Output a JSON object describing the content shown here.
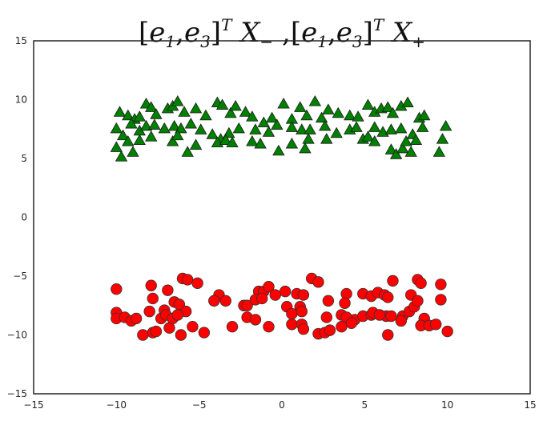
{
  "chart_data": {
    "type": "scatter",
    "title": {
      "parts": [
        {
          "t": "[",
          "upright": true
        },
        {
          "t": "e"
        },
        {
          "t": "1",
          "sub": true
        },
        {
          "t": ",",
          "upright": true
        },
        {
          "t": "e"
        },
        {
          "t": "3",
          "sub": true
        },
        {
          "t": "]",
          "upright": true
        },
        {
          "t": "T",
          "sup": true
        },
        {
          "t": " X"
        },
        {
          "t": "−",
          "sub": true,
          "upright": true
        },
        {
          "t": " ,",
          "upright": true
        },
        {
          "t": "[",
          "upright": true
        },
        {
          "t": "e"
        },
        {
          "t": "1",
          "sub": true
        },
        {
          "t": ",",
          "upright": true
        },
        {
          "t": "e"
        },
        {
          "t": "3",
          "sub": true
        },
        {
          "t": "]",
          "upright": true
        },
        {
          "t": "T",
          "sup": true
        },
        {
          "t": " X"
        },
        {
          "t": "+",
          "sub": true,
          "upright": true
        }
      ]
    },
    "xlabel": "",
    "ylabel": "",
    "xlim": [
      -15,
      15
    ],
    "ylim": [
      -15,
      15
    ],
    "xticks": [
      -15,
      -10,
      -5,
      0,
      5,
      10,
      15
    ],
    "yticks": [
      -15,
      -10,
      -5,
      0,
      5,
      10,
      15
    ],
    "xtick_labels": [
      "−15",
      "−10",
      "−5",
      "0",
      "5",
      "10",
      "15"
    ],
    "ytick_labels": [
      "−15",
      "−10",
      "−5",
      "0",
      "5",
      "10",
      "15"
    ],
    "grid": false,
    "series": [
      {
        "marker": "triangle",
        "color": "#008000",
        "points": [
          [
            -9.8,
            8.9
          ],
          [
            -9.3,
            8.6
          ],
          [
            -8.9,
            8.3
          ],
          [
            -8.6,
            8.5
          ],
          [
            -8.2,
            9.6
          ],
          [
            -7.9,
            9.3
          ],
          [
            -7.6,
            8.7
          ],
          [
            -6.9,
            9.2
          ],
          [
            -6.6,
            9.4
          ],
          [
            -6.3,
            9.8
          ],
          [
            -5.9,
            8.9
          ],
          [
            -5.2,
            9.2
          ],
          [
            -4.6,
            8.6
          ],
          [
            -3.9,
            9.7
          ],
          [
            -3.6,
            9.5
          ],
          [
            -3.1,
            8.8
          ],
          [
            -2.8,
            9.4
          ],
          [
            -2.2,
            8.9
          ],
          [
            -1.8,
            8.5
          ],
          [
            -1.1,
            8.0
          ],
          [
            -0.6,
            8.4
          ],
          [
            0.1,
            9.6
          ],
          [
            0.6,
            8.3
          ],
          [
            1.1,
            9.3
          ],
          [
            1.5,
            8.6
          ],
          [
            2.0,
            9.8
          ],
          [
            2.4,
            8.4
          ],
          [
            2.8,
            9.1
          ],
          [
            3.4,
            8.8
          ],
          [
            4.1,
            8.6
          ],
          [
            4.6,
            8.5
          ],
          [
            5.2,
            9.5
          ],
          [
            5.6,
            8.9
          ],
          [
            6.0,
            9.2
          ],
          [
            6.4,
            9.3
          ],
          [
            6.7,
            8.8
          ],
          [
            7.2,
            9.4
          ],
          [
            7.6,
            9.7
          ],
          [
            8.3,
            8.4
          ],
          [
            8.6,
            8.6
          ],
          [
            -10.0,
            7.5
          ],
          [
            -9.6,
            6.9
          ],
          [
            -9.1,
            7.9
          ],
          [
            -8.6,
            7.3
          ],
          [
            -8.2,
            7.7
          ],
          [
            -7.7,
            7.8
          ],
          [
            -7.1,
            7.5
          ],
          [
            -6.5,
            7.7
          ],
          [
            -6.1,
            7.5
          ],
          [
            -5.5,
            7.9
          ],
          [
            -4.9,
            7.4
          ],
          [
            -4.2,
            7.0
          ],
          [
            -3.7,
            6.6
          ],
          [
            -3.2,
            7.1
          ],
          [
            -2.6,
            7.5
          ],
          [
            -1.6,
            7.4
          ],
          [
            -0.8,
            7.2
          ],
          [
            -0.3,
            7.8
          ],
          [
            0.6,
            7.6
          ],
          [
            1.2,
            7.4
          ],
          [
            1.7,
            7.4
          ],
          [
            2.6,
            7.7
          ],
          [
            3.3,
            7.1
          ],
          [
            4.1,
            7.4
          ],
          [
            4.5,
            7.6
          ],
          [
            5.6,
            7.6
          ],
          [
            6.1,
            7.2
          ],
          [
            6.6,
            7.4
          ],
          [
            7.2,
            7.5
          ],
          [
            7.9,
            7.0
          ],
          [
            8.5,
            7.6
          ],
          [
            9.9,
            7.7
          ],
          [
            -10.0,
            5.9
          ],
          [
            -9.7,
            5.1
          ],
          [
            -9.3,
            6.4
          ],
          [
            -9.0,
            5.5
          ],
          [
            -8.6,
            6.5
          ],
          [
            -7.9,
            6.8
          ],
          [
            -6.6,
            6.4
          ],
          [
            -6.3,
            6.9
          ],
          [
            -5.7,
            5.5
          ],
          [
            -5.2,
            6.1
          ],
          [
            -3.9,
            6.3
          ],
          [
            -3.4,
            6.5
          ],
          [
            -3.0,
            6.3
          ],
          [
            -1.8,
            6.4
          ],
          [
            -1.3,
            6.2
          ],
          [
            -0.2,
            5.6
          ],
          [
            0.6,
            6.2
          ],
          [
            1.4,
            5.8
          ],
          [
            1.6,
            6.6
          ],
          [
            2.7,
            6.6
          ],
          [
            4.9,
            6.6
          ],
          [
            5.2,
            6.8
          ],
          [
            5.6,
            6.4
          ],
          [
            6.6,
            5.7
          ],
          [
            6.9,
            5.3
          ],
          [
            7.3,
            5.8
          ],
          [
            7.5,
            6.4
          ],
          [
            7.8,
            5.5
          ],
          [
            8.1,
            6.5
          ],
          [
            9.5,
            5.5
          ],
          [
            9.7,
            6.6
          ]
        ]
      },
      {
        "marker": "circle",
        "color": "#ff0000",
        "points": [
          [
            -10.0,
            -6.1
          ],
          [
            -7.9,
            -5.8
          ],
          [
            -6.9,
            -6.2
          ],
          [
            -6.0,
            -5.2
          ],
          [
            -5.7,
            -5.3
          ],
          [
            -5.1,
            -5.6
          ],
          [
            -3.8,
            -6.6
          ],
          [
            -1.4,
            -6.3
          ],
          [
            -1.1,
            -6.3
          ],
          [
            -0.8,
            -5.9
          ],
          [
            0.2,
            -6.3
          ],
          [
            0.9,
            -6.5
          ],
          [
            1.8,
            -5.2
          ],
          [
            2.2,
            -5.5
          ],
          [
            3.9,
            -6.5
          ],
          [
            4.9,
            -6.5
          ],
          [
            5.4,
            -6.7
          ],
          [
            5.8,
            -6.4
          ],
          [
            6.2,
            -6.6
          ],
          [
            6.4,
            -6.8
          ],
          [
            6.7,
            -5.4
          ],
          [
            7.8,
            -6.6
          ],
          [
            8.2,
            -5.3
          ],
          [
            8.4,
            -5.6
          ],
          [
            9.6,
            -5.7
          ],
          [
            -7.8,
            -6.9
          ],
          [
            -7.1,
            -7.9
          ],
          [
            -6.5,
            -7.2
          ],
          [
            -6.2,
            -7.4
          ],
          [
            -5.8,
            -8.0
          ],
          [
            -4.1,
            -7.1
          ],
          [
            -3.4,
            -7.1
          ],
          [
            -2.3,
            -7.5
          ],
          [
            -2.1,
            -7.5
          ],
          [
            -1.6,
            -7.0
          ],
          [
            -1.2,
            -6.9
          ],
          [
            -0.4,
            -6.6
          ],
          [
            0.3,
            -7.6
          ],
          [
            1.1,
            -7.6
          ],
          [
            1.3,
            -6.6
          ],
          [
            2.8,
            -7.1
          ],
          [
            3.6,
            -8.3
          ],
          [
            3.8,
            -7.3
          ],
          [
            4.4,
            -8.7
          ],
          [
            4.9,
            -8.4
          ],
          [
            5.4,
            -8.3
          ],
          [
            6.3,
            -8.4
          ],
          [
            6.6,
            -8.4
          ],
          [
            7.3,
            -8.4
          ],
          [
            7.7,
            -8.0
          ],
          [
            8.0,
            -7.6
          ],
          [
            8.2,
            -7.1
          ],
          [
            8.6,
            -8.6
          ],
          [
            9.6,
            -7.0
          ],
          [
            -10.0,
            -8.1
          ],
          [
            -10.0,
            -8.6
          ],
          [
            -9.5,
            -8.5
          ],
          [
            -9.1,
            -8.8
          ],
          [
            -8.8,
            -8.6
          ],
          [
            -8.4,
            -10.0
          ],
          [
            -8.0,
            -8.0
          ],
          [
            -7.8,
            -9.8
          ],
          [
            -7.6,
            -9.7
          ],
          [
            -7.3,
            -8.6
          ],
          [
            -7.0,
            -8.3
          ],
          [
            -6.8,
            -9.4
          ],
          [
            -6.6,
            -8.6
          ],
          [
            -6.3,
            -8.3
          ],
          [
            -6.1,
            -10.0
          ],
          [
            -5.4,
            -9.3
          ],
          [
            -4.7,
            -9.8
          ],
          [
            -3.0,
            -9.3
          ],
          [
            -2.1,
            -8.5
          ],
          [
            -1.6,
            -8.7
          ],
          [
            -0.8,
            -9.3
          ],
          [
            0.6,
            -8.2
          ],
          [
            0.6,
            -9.1
          ],
          [
            1.2,
            -8.0
          ],
          [
            1.2,
            -9.1
          ],
          [
            1.3,
            -9.5
          ],
          [
            2.2,
            -9.9
          ],
          [
            2.6,
            -9.8
          ],
          [
            2.7,
            -8.5
          ],
          [
            2.9,
            -9.6
          ],
          [
            3.6,
            -9.3
          ],
          [
            3.9,
            -8.5
          ],
          [
            4.2,
            -9.0
          ],
          [
            5.5,
            -8.1
          ],
          [
            5.9,
            -8.3
          ],
          [
            6.4,
            -10.0
          ],
          [
            7.2,
            -8.8
          ],
          [
            8.4,
            -9.2
          ],
          [
            8.9,
            -9.2
          ],
          [
            9.3,
            -9.1
          ],
          [
            10.0,
            -9.7
          ]
        ]
      }
    ]
  }
}
